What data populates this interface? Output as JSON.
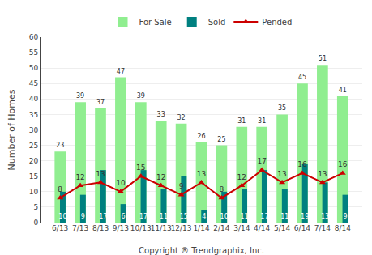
{
  "chart_data": {
    "type": "bar",
    "xlabel": "Copyright ® Trendgraphix, Inc.",
    "ylabel": "Number of Homes",
    "categories": [
      "6/13",
      "7/13",
      "8/13",
      "9/13",
      "10/13",
      "11/13",
      "12/13",
      "1/14",
      "2/14",
      "3/14",
      "4/14",
      "5/14",
      "6/14",
      "7/14",
      "8/14"
    ],
    "series": [
      {
        "name": "For Sale",
        "type": "bar",
        "color": "#90ee90",
        "values": [
          23,
          39,
          37,
          47,
          39,
          33,
          32,
          26,
          25,
          31,
          31,
          35,
          45,
          51,
          41
        ]
      },
      {
        "name": "Sold",
        "type": "bar",
        "color": "#008080",
        "values": [
          10,
          9,
          17,
          6,
          17,
          11,
          15,
          4,
          10,
          11,
          17,
          11,
          19,
          13,
          9
        ]
      },
      {
        "name": "Pended",
        "type": "line",
        "color": "#cc0000",
        "marker": "triangle",
        "values": [
          8,
          12,
          13,
          10,
          15,
          12,
          9,
          13,
          8,
          12,
          17,
          13,
          16,
          13,
          16
        ]
      }
    ],
    "ylim": [
      0,
      60
    ],
    "yticks": [
      0,
      5,
      10,
      15,
      20,
      25,
      30,
      35,
      40,
      45,
      50,
      55,
      60
    ],
    "grid": true,
    "legend": "top",
    "data_labels": true
  }
}
